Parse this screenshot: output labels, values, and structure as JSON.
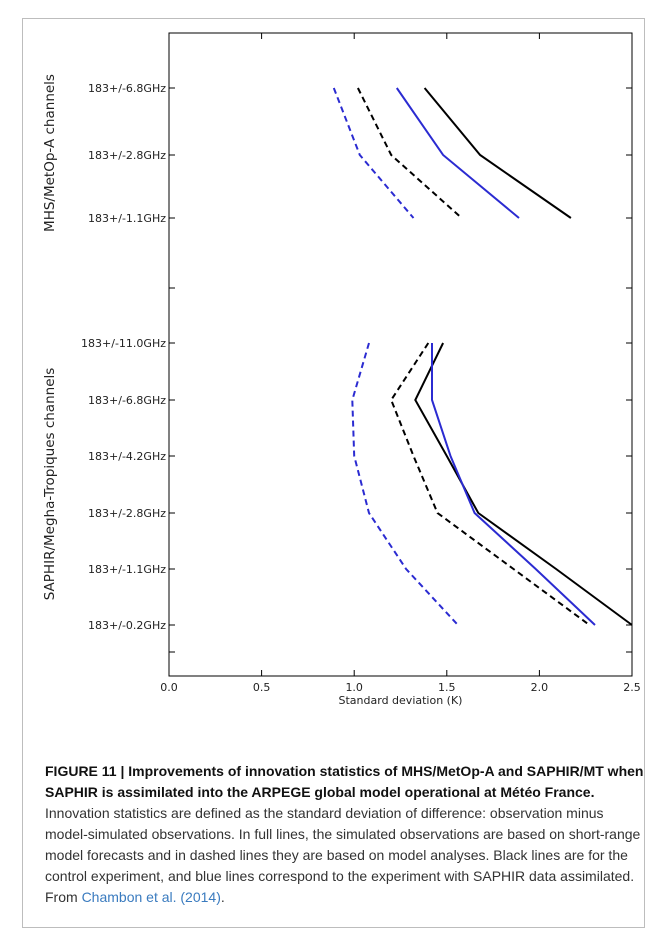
{
  "chart_data": {
    "type": "line",
    "xlabel": "Standard deviation (K)",
    "xlim": [
      0.0,
      2.5
    ],
    "xticks": [
      "0.0",
      "0.5",
      "1.0",
      "1.5",
      "2.0",
      "2.5"
    ],
    "grid": false,
    "colors": {
      "control": "#000000",
      "saphir": "#2b2bd1"
    },
    "groups": [
      {
        "label": "MHS/MetOp-A channels",
        "channels": [
          "183+/-6.8GHz",
          "183+/-2.8GHz",
          "183+/-1.1GHz"
        ],
        "series": [
          {
            "color": "#000000",
            "dash": false,
            "values": [
              1.38,
              1.68,
              2.17
            ]
          },
          {
            "color": "#2b2bd1",
            "dash": false,
            "values": [
              1.23,
              1.48,
              1.89
            ]
          },
          {
            "color": "#000000",
            "dash": true,
            "values": [
              1.02,
              1.2,
              1.58
            ]
          },
          {
            "color": "#2b2bd1",
            "dash": true,
            "values": [
              0.89,
              1.03,
              1.32
            ]
          }
        ]
      },
      {
        "label": "SAPHIR/Megha-Tropiques channels",
        "channels": [
          "183+/-11.0GHz",
          "183+/-6.8GHz",
          "183+/-4.2GHz",
          "183+/-2.8GHz",
          "183+/-1.1GHz",
          "183+/-0.2GHz"
        ],
        "series": [
          {
            "color": "#000000",
            "dash": false,
            "values": [
              1.48,
              1.33,
              1.5,
              1.67,
              2.09,
              2.5
            ]
          },
          {
            "color": "#2b2bd1",
            "dash": false,
            "values": [
              1.42,
              1.42,
              1.52,
              1.65,
              1.98,
              2.3
            ]
          },
          {
            "color": "#000000",
            "dash": true,
            "values": [
              1.4,
              1.2,
              1.32,
              1.45,
              1.86,
              2.27
            ]
          },
          {
            "color": "#2b2bd1",
            "dash": true,
            "values": [
              1.08,
              0.99,
              1.0,
              1.08,
              1.28,
              1.56
            ]
          }
        ]
      }
    ]
  },
  "caption": {
    "bold": "FIGURE 11 | Improvements of innovation statistics of MHS/MetOp-A and SAPHIR/MT when SAPHIR is assimilated into the ARPEGE global model operational at Météo France.",
    "body": " Innovation statistics are defined as the standard deviation of difference: observation minus model-simulated observations. In full lines, the simulated observations are based on short-range model forecasts and in dashed lines they are based on model analyses. Black lines are for the control experiment, and blue lines correspond to the experiment with SAPHIR data assimilated. From ",
    "ref": "Chambon et al. (2014)",
    "end": "."
  }
}
